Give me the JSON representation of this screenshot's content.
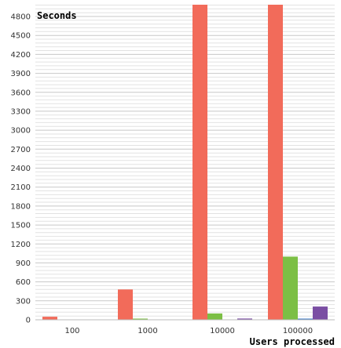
{
  "chart_data": {
    "type": "bar",
    "title": "",
    "xlabel": "Users processed",
    "ylabel": "Seconds",
    "categories": [
      "100",
      "1000",
      "10000",
      "100000"
    ],
    "y_ticks": [
      0,
      300,
      600,
      900,
      1200,
      1500,
      1800,
      2100,
      2400,
      2700,
      3000,
      3300,
      3600,
      3900,
      4200,
      4500,
      4800
    ],
    "ylim": [
      0,
      5000
    ],
    "grid": true,
    "series": [
      {
        "color": "#f26b5a",
        "values": [
          48,
          480,
          5000,
          5000
        ]
      },
      {
        "color": "#7cbf45",
        "values": [
          0,
          2,
          100,
          1000
        ]
      },
      {
        "color": "#3b78c4",
        "values": [
          0,
          0,
          0,
          15
        ]
      },
      {
        "color": "#7a4ea3",
        "values": [
          0,
          0,
          20,
          210
        ]
      }
    ]
  }
}
